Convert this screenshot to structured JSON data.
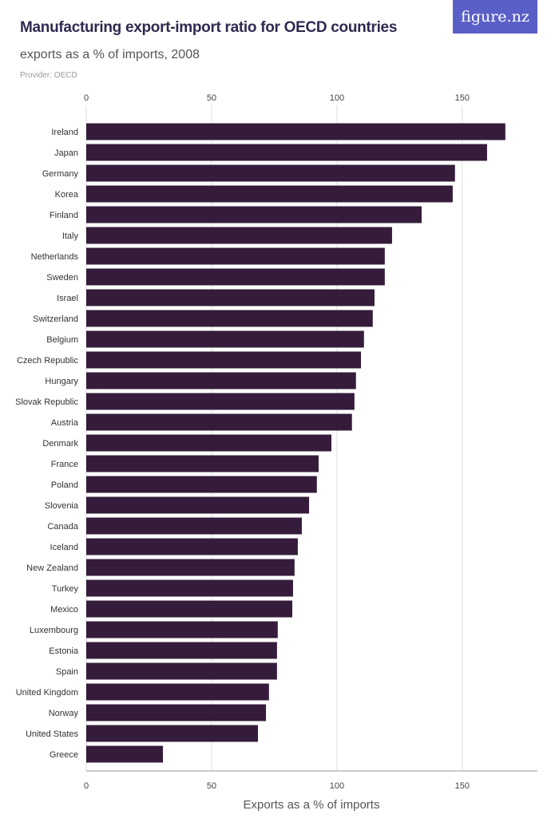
{
  "header": {
    "title": "Manufacturing export-import ratio for OECD countries",
    "subtitle": "exports as a % of imports, 2008",
    "provider": "Provider: OECD",
    "logo": "figure.nz"
  },
  "colors": {
    "bar": "#351c3a",
    "logo_bg": "#5a5fc8",
    "grid": "#dddddd"
  },
  "chart_data": {
    "type": "bar",
    "orientation": "horizontal",
    "title": "Manufacturing export-import ratio for OECD countries",
    "subtitle": "exports as a % of imports, 2008",
    "xlabel": "Exports as a % of imports",
    "ylabel": "",
    "xlim": [
      0,
      180
    ],
    "xticks": [
      0,
      50,
      100,
      150
    ],
    "grid": true,
    "categories": [
      "Ireland",
      "Japan",
      "Germany",
      "Korea",
      "Finland",
      "Italy",
      "Netherlands",
      "Sweden",
      "Israel",
      "Switzerland",
      "Belgium",
      "Czech Republic",
      "Hungary",
      "Slovak Republic",
      "Austria",
      "Denmark",
      "France",
      "Poland",
      "Slovenia",
      "Canada",
      "Iceland",
      "New Zealand",
      "Turkey",
      "Mexico",
      "Luxembourg",
      "Estonia",
      "Spain",
      "United Kingdom",
      "Norway",
      "United States",
      "Greece"
    ],
    "values": [
      167.2,
      159.9,
      147.1,
      146.2,
      133.8,
      122.0,
      119.1,
      119.1,
      115.0,
      114.3,
      110.8,
      109.6,
      107.6,
      107.0,
      106.0,
      97.8,
      92.7,
      92.0,
      88.9,
      86.0,
      84.4,
      83.1,
      82.5,
      82.2,
      76.4,
      76.1,
      76.1,
      72.9,
      71.7,
      68.5,
      30.6
    ]
  }
}
